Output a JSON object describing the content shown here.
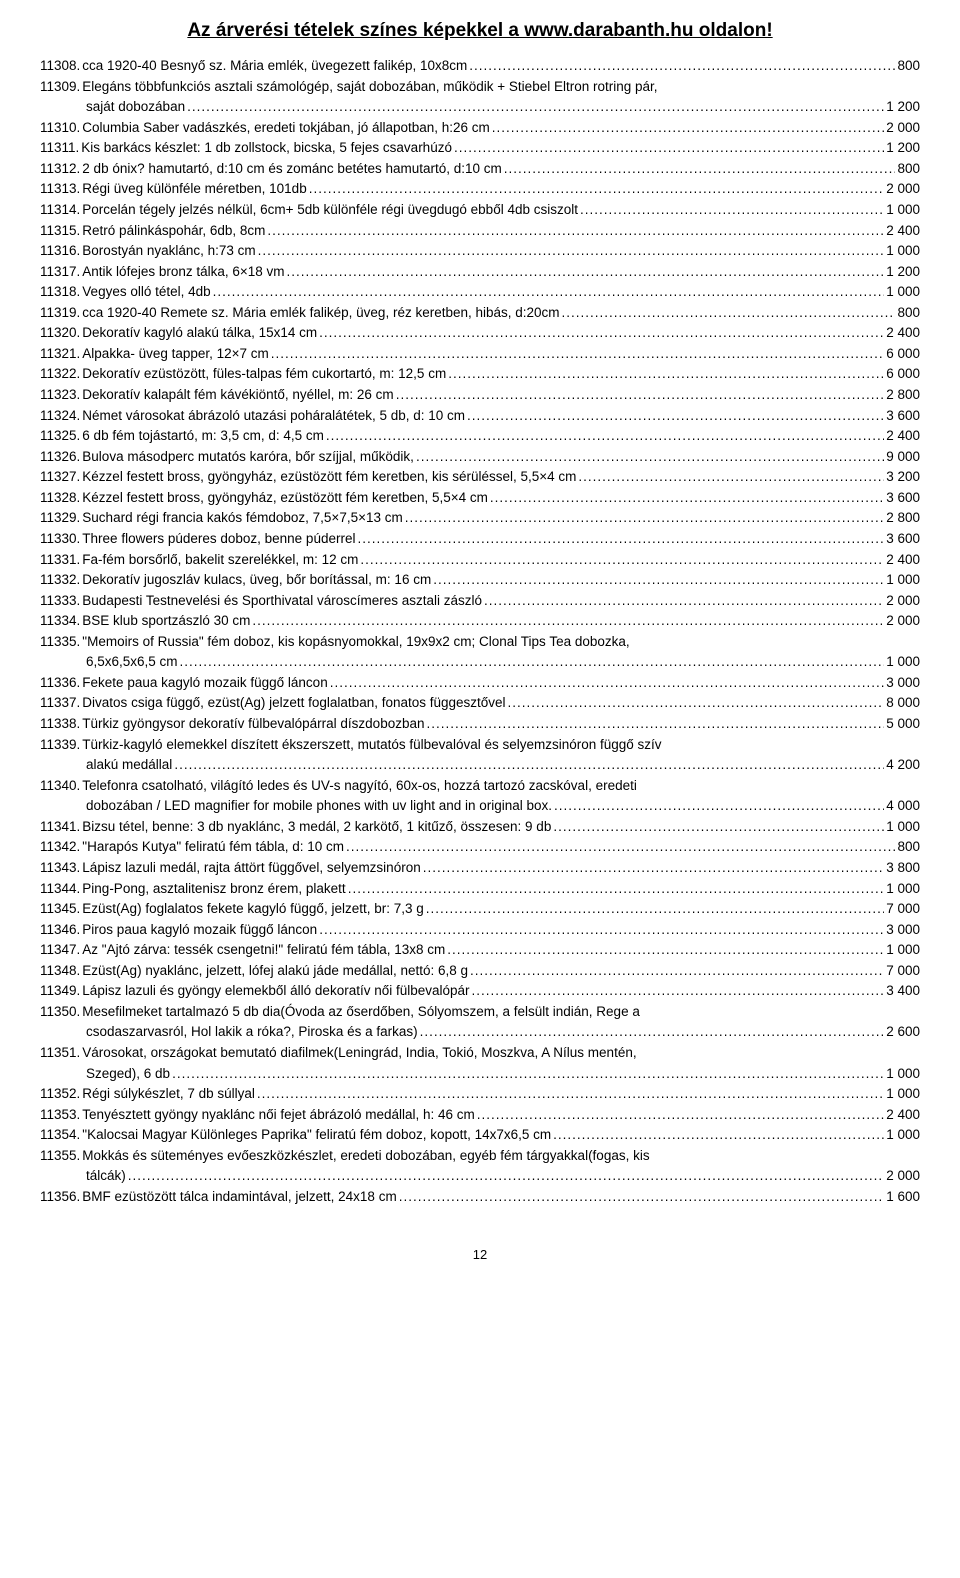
{
  "title": "Az árverési tételek színes képekkel a www.darabanth.hu oldalon!",
  "page_number": "12",
  "items": [
    {
      "n": "11308.",
      "lines": [
        "cca 1920-40 Besnyő sz. Mária emlék, üvegezett falikép, 10x8cm"
      ],
      "price": "800"
    },
    {
      "n": "11309.",
      "lines": [
        "Elegáns többfunkciós asztali számológép, saját dobozában, működik + Stiebel Eltron rotring pár,",
        "saját dobozában"
      ],
      "price": "1 200"
    },
    {
      "n": "11310.",
      "lines": [
        "Columbia Saber vadászkés, eredeti tokjában, jó állapotban, h:26 cm"
      ],
      "price": "2 000"
    },
    {
      "n": "11311.",
      "lines": [
        "Kis barkács készlet: 1 db zollstock, bicska, 5 fejes csavarhúzó"
      ],
      "price": "1 200"
    },
    {
      "n": "11312.",
      "lines": [
        "2 db ónix? hamutartó, d:10 cm és zománc betétes hamutartó, d:10 cm"
      ],
      "price": "800"
    },
    {
      "n": "11313.",
      "lines": [
        "Régi üveg különféle méretben, 101db"
      ],
      "price": "2 000"
    },
    {
      "n": "11314.",
      "lines": [
        "Porcelán tégely jelzés nélkül, 6cm+ 5db különféle régi üvegdugó ebből 4db csiszolt"
      ],
      "price": "1 000"
    },
    {
      "n": "11315.",
      "lines": [
        "Retró pálinkáspohár, 6db, 8cm"
      ],
      "price": "2 400"
    },
    {
      "n": "11316.",
      "lines": [
        "Borostyán nyaklánc, h:73 cm"
      ],
      "price": "1 000"
    },
    {
      "n": "11317.",
      "lines": [
        "Antik lófejes bronz tálka, 6×18 vm"
      ],
      "price": "1 200"
    },
    {
      "n": "11318.",
      "lines": [
        "Vegyes olló tétel, 4db"
      ],
      "price": "1 000"
    },
    {
      "n": "11319.",
      "lines": [
        "cca 1920-40 Remete sz. Mária emlék falikép, üveg, réz keretben, hibás, d:20cm"
      ],
      "price": "800"
    },
    {
      "n": "11320.",
      "lines": [
        "Dekoratív kagyló alakú tálka, 15x14 cm"
      ],
      "price": "2 400"
    },
    {
      "n": "11321.",
      "lines": [
        "Alpakka- üveg tapper, 12×7 cm"
      ],
      "price": "6 000"
    },
    {
      "n": "11322.",
      "lines": [
        "Dekoratív ezüstözött, füles-talpas fém cukortartó, m: 12,5 cm"
      ],
      "price": "6 000"
    },
    {
      "n": "11323.",
      "lines": [
        "Dekoratív kalapált fém kávékiöntő, nyéllel, m: 26 cm"
      ],
      "price": "2 800"
    },
    {
      "n": "11324.",
      "lines": [
        "Német városokat ábrázoló utazási poháralátétek, 5 db, d: 10 cm"
      ],
      "price": "3 600"
    },
    {
      "n": "11325.",
      "lines": [
        "6 db fém tojástartó, m: 3,5 cm, d: 4,5 cm"
      ],
      "price": "2 400"
    },
    {
      "n": "11326.",
      "lines": [
        "Bulova másodperc mutatós karóra, bőr szíjjal, működik,"
      ],
      "price": "9 000"
    },
    {
      "n": "11327.",
      "lines": [
        "Kézzel festett bross, gyöngyház, ezüstözött fém keretben, kis sérüléssel, 5,5×4 cm"
      ],
      "price": "3 200"
    },
    {
      "n": "11328.",
      "lines": [
        "Kézzel festett bross, gyöngyház, ezüstözött fém keretben, 5,5×4 cm"
      ],
      "price": "3 600"
    },
    {
      "n": "11329.",
      "lines": [
        "Suchard régi francia kakós fémdoboz, 7,5×7,5×13 cm"
      ],
      "price": "2 800"
    },
    {
      "n": "11330.",
      "lines": [
        "Three flowers púderes doboz, benne púderrel"
      ],
      "price": "3 600"
    },
    {
      "n": "11331.",
      "lines": [
        "Fa-fém borsőrlő, bakelit szerelékkel, m: 12 cm"
      ],
      "price": "2 400"
    },
    {
      "n": "11332.",
      "lines": [
        "Dekoratív jugoszláv kulacs, üveg, bőr borítással, m: 16 cm"
      ],
      "price": "1 000"
    },
    {
      "n": "11333.",
      "lines": [
        "Budapesti Testnevelési és Sporthivatal városcímeres asztali zászló"
      ],
      "price": "2 000"
    },
    {
      "n": "11334.",
      "lines": [
        "BSE klub sportzászló 30 cm"
      ],
      "price": "2 000"
    },
    {
      "n": "11335.",
      "lines": [
        "\"Memoirs of Russia\" fém doboz, kis kopásnyomokkal, 19x9x2 cm; Clonal Tips Tea dobozka,",
        "6,5x6,5x6,5 cm"
      ],
      "price": "1 000"
    },
    {
      "n": "11336.",
      "lines": [
        "Fekete paua kagyló mozaik függő láncon"
      ],
      "price": "3 000"
    },
    {
      "n": "11337.",
      "lines": [
        "Divatos csiga függő, ezüst(Ag) jelzett foglalatban, fonatos függesztővel"
      ],
      "price": "8 000"
    },
    {
      "n": "11338.",
      "lines": [
        "Türkiz gyöngysor dekoratív fülbevalópárral díszdobozban"
      ],
      "price": "5 000"
    },
    {
      "n": "11339.",
      "lines": [
        "Türkiz-kagyló elemekkel díszített ékszerszett, mutatós fülbevalóval és selyemzsinóron függő szív",
        "alakú medállal"
      ],
      "price": "4 200"
    },
    {
      "n": "11340.",
      "lines": [
        "Telefonra csatolható, világító ledes és UV-s nagyító, 60x-os, hozzá tartozó zacskóval, eredeti",
        "dobozában / LED magnifier for mobile phones with uv light and in original box."
      ],
      "price": "4 000"
    },
    {
      "n": "11341.",
      "lines": [
        "Bizsu tétel, benne: 3 db nyaklánc, 3 medál, 2 karkötő, 1 kitűző, összesen: 9 db"
      ],
      "price": "1 000"
    },
    {
      "n": "11342.",
      "lines": [
        "\"Harapós Kutya\" feliratú fém tábla, d: 10 cm"
      ],
      "price": "800"
    },
    {
      "n": "11343.",
      "lines": [
        "Lápisz lazuli medál, rajta áttört függővel, selyemzsinóron"
      ],
      "price": "3 800"
    },
    {
      "n": "11344.",
      "lines": [
        "Ping-Pong, asztalitenisz bronz érem, plakett"
      ],
      "price": "1 000"
    },
    {
      "n": "11345.",
      "lines": [
        "Ezüst(Ag) foglalatos fekete kagyló függő, jelzett, br: 7,3 g"
      ],
      "price": "7 000"
    },
    {
      "n": "11346.",
      "lines": [
        "Piros paua kagyló mozaik függő láncon"
      ],
      "price": "3 000"
    },
    {
      "n": "11347.",
      "lines": [
        "Az \"Ajtó zárva: tessék csengetni!\" feliratú fém tábla, 13x8 cm"
      ],
      "price": "1 000"
    },
    {
      "n": "11348.",
      "lines": [
        "Ezüst(Ag) nyaklánc, jelzett, lófej alakú jáde medállal, nettó: 6,8 g"
      ],
      "price": "7 000"
    },
    {
      "n": "11349.",
      "lines": [
        "Lápisz lazuli és gyöngy elemekből álló dekoratív női fülbevalópár"
      ],
      "price": "3 400"
    },
    {
      "n": "11350.",
      "lines": [
        "Mesefilmeket tartalmazó 5 db dia(Óvoda az őserdőben, Sólyomszem, a felsült indián, Rege a",
        "csodaszarvasról, Hol lakik a róka?, Piroska és a farkas)"
      ],
      "price": "2 600"
    },
    {
      "n": "11351.",
      "lines": [
        "Városokat, országokat bemutató diafilmek(Leningrád, India, Tokió, Moszkva, A Nílus mentén,",
        "Szeged), 6 db"
      ],
      "price": "1 000"
    },
    {
      "n": "11352.",
      "lines": [
        "Régi súlykészlet, 7 db súllyal"
      ],
      "price": "1 000"
    },
    {
      "n": "11353.",
      "lines": [
        "Tenyésztett gyöngy nyaklánc női fejet ábrázoló medállal, h: 46 cm"
      ],
      "price": "2 400"
    },
    {
      "n": "11354.",
      "lines": [
        "\"Kalocsai Magyar Különleges Paprika\" feliratú fém doboz, kopott, 14x7x6,5 cm"
      ],
      "price": "1 000"
    },
    {
      "n": "11355.",
      "lines": [
        "Mokkás és süteményes evőeszközkészlet, eredeti dobozában, egyéb fém tárgyakkal(fogas, kis",
        "tálcák)"
      ],
      "price": "2 000"
    },
    {
      "n": "11356.",
      "lines": [
        "BMF ezüstözött tálca indamintával, jelzett, 24x18 cm"
      ],
      "price": "1 600"
    }
  ]
}
